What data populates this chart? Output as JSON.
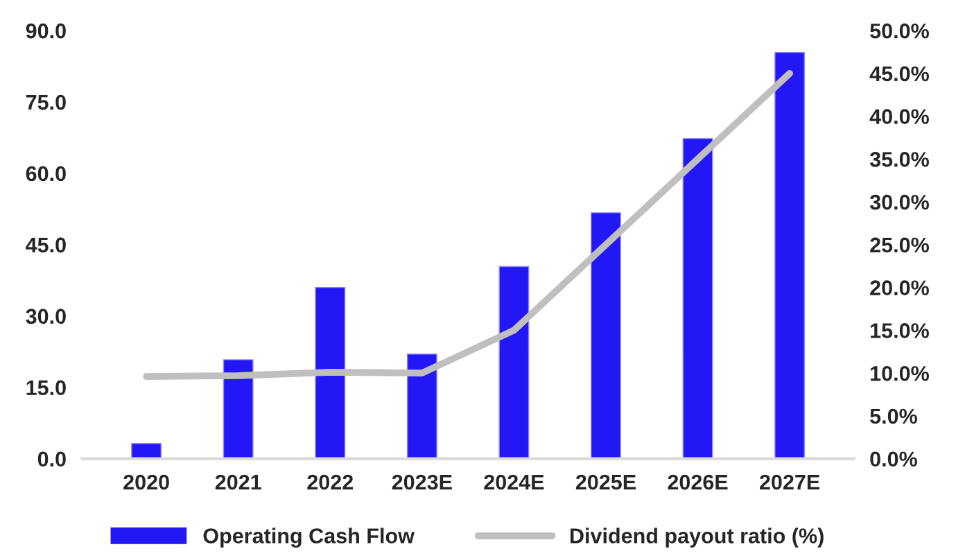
{
  "chart_data": {
    "type": "bar",
    "categories": [
      "2020",
      "2021",
      "2022",
      "2023E",
      "2024E",
      "2025E",
      "2026E",
      "2027E"
    ],
    "series": [
      {
        "name": "Operating Cash Flow",
        "color": "#2318f5",
        "values": [
          3.2,
          20.8,
          36.0,
          22.0,
          40.4,
          51.7,
          67.3,
          85.4
        ]
      },
      {
        "name": "Dividend payout ratio (%)",
        "type": "line",
        "axis": "y2",
        "color": "#bfbfbf",
        "values": [
          9.6,
          9.7,
          10.1,
          10.0,
          15.0,
          25.0,
          35.0,
          45.0
        ]
      }
    ],
    "ylim": [
      0,
      90
    ],
    "yticks": [
      {
        "value": 0,
        "label": "0.0"
      },
      {
        "value": 15,
        "label": "15.0"
      },
      {
        "value": 30,
        "label": "30.0"
      },
      {
        "value": 45,
        "label": "45.0"
      },
      {
        "value": 60,
        "label": "60.0"
      },
      {
        "value": 75,
        "label": "75.0"
      },
      {
        "value": 90,
        "label": "90.0"
      }
    ],
    "y2lim": [
      0,
      50
    ],
    "y2ticks": [
      {
        "value": 0,
        "label": "0.0%"
      },
      {
        "value": 5,
        "label": "5.0%"
      },
      {
        "value": 10,
        "label": "10.0%"
      },
      {
        "value": 15,
        "label": "15.0%"
      },
      {
        "value": 20,
        "label": "20.0%"
      },
      {
        "value": 25,
        "label": "25.0%"
      },
      {
        "value": 30,
        "label": "30.0%"
      },
      {
        "value": 35,
        "label": "35.0%"
      },
      {
        "value": 40,
        "label": "40.0%"
      },
      {
        "value": 45,
        "label": "45.0%"
      },
      {
        "value": 50,
        "label": "50.0%"
      }
    ],
    "grid": false,
    "legend": "bottom",
    "marker": "none",
    "line_style": "solid"
  }
}
